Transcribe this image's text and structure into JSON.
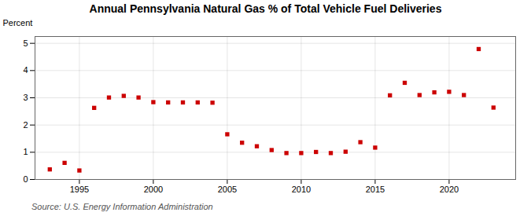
{
  "chart_data": {
    "type": "scatter",
    "title": "Annual Pennsylvania Natural Gas % of Total Vehicle Fuel Deliveries",
    "ylabel": "Percent",
    "source": "Source: U.S. Energy Information Administration",
    "x": [
      1993,
      1994,
      1995,
      1996,
      1997,
      1998,
      1999,
      2000,
      2001,
      2002,
      2003,
      2004,
      2005,
      2006,
      2007,
      2008,
      2009,
      2010,
      2011,
      2012,
      2013,
      2014,
      2015,
      2016,
      2017,
      2018,
      2019,
      2020,
      2021,
      2022,
      2023
    ],
    "values": [
      0.37,
      0.61,
      0.33,
      2.63,
      3.01,
      3.07,
      3.01,
      2.84,
      2.83,
      2.83,
      2.83,
      2.82,
      1.66,
      1.35,
      1.22,
      1.08,
      0.97,
      0.97,
      1.01,
      0.97,
      1.02,
      1.37,
      1.17,
      3.09,
      3.55,
      3.1,
      3.2,
      3.22,
      3.1,
      4.79,
      2.64
    ],
    "color": "#cc0000",
    "marker": "square",
    "xlim": [
      1992.0,
      2024.5
    ],
    "ylim": [
      0,
      5.25
    ],
    "xticks": [
      1995,
      2000,
      2005,
      2010,
      2015,
      2020
    ],
    "yticks": [
      0,
      1,
      2,
      3,
      4,
      5
    ],
    "grid": true
  }
}
